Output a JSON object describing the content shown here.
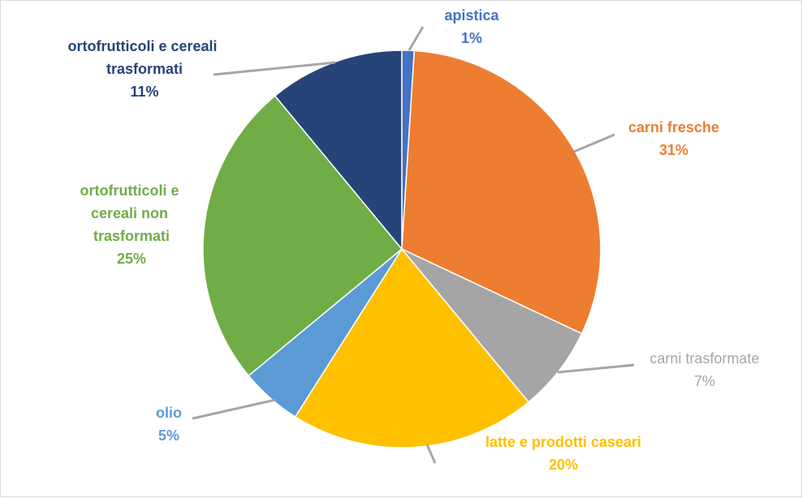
{
  "chart_data": {
    "type": "pie",
    "title": "",
    "slices": [
      {
        "name": "apistica",
        "value": 1,
        "percent_label": "1%",
        "color": "#4472C4"
      },
      {
        "name": "carni fresche",
        "value": 31,
        "percent_label": "31%",
        "color": "#ED7D31"
      },
      {
        "name": "carni trasformate",
        "value": 7,
        "percent_label": "7%",
        "color": "#A5A5A5"
      },
      {
        "name": "latte e prodotti caseari",
        "value": 20,
        "percent_label": "20%",
        "color": "#FFC000"
      },
      {
        "name": "olio",
        "value": 5,
        "percent_label": "5%",
        "color": "#5B9BD5"
      },
      {
        "name": "ortofrutticoli e cereali non trasformati",
        "value": 25,
        "percent_label": "25%",
        "color": "#70AD47"
      },
      {
        "name": "ortofrutticoli e cereali trasformati",
        "value": 11,
        "percent_label": "11%",
        "color": "#264478"
      }
    ],
    "start_angle": "12 o'clock",
    "direction": "clockwise",
    "legend": "none"
  }
}
